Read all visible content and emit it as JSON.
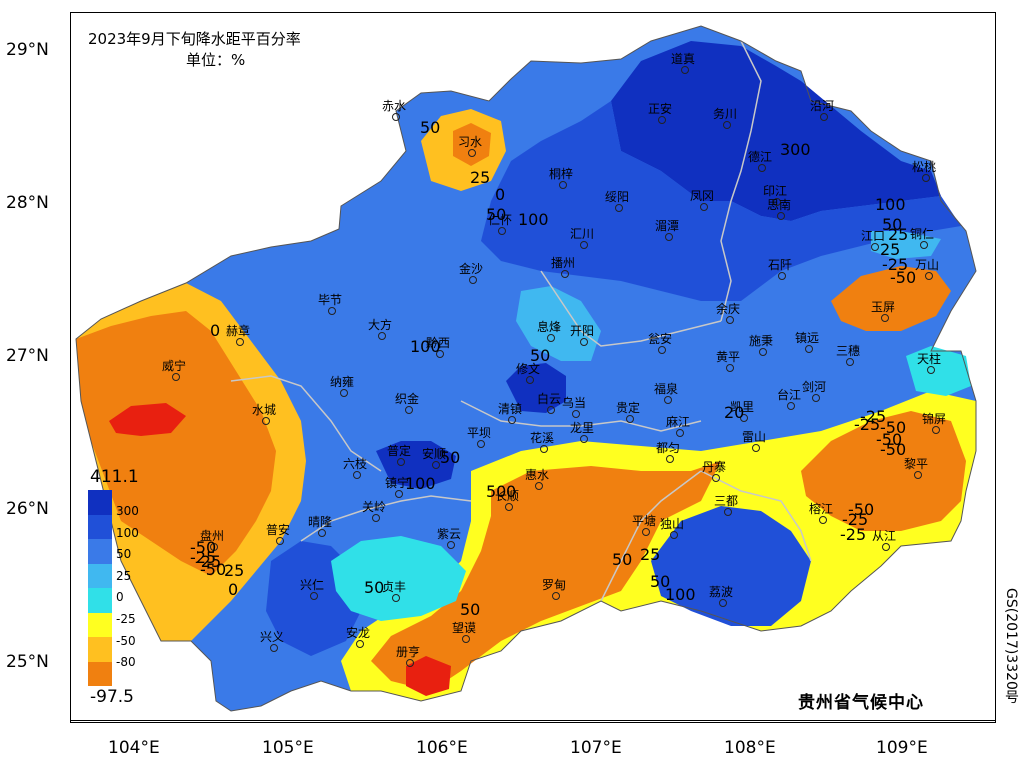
{
  "title": "2023年9月下旬降水距平百分率",
  "unit": "单位：%",
  "credit": "贵州省气候中心",
  "review_code": "GS(2017)3320号",
  "axes": {
    "lat_labels": [
      "29°N",
      "28°N",
      "27°N",
      "26°N",
      "25°N"
    ],
    "lon_labels": [
      "104°E",
      "105°E",
      "106°E",
      "107°E",
      "108°E",
      "109°E"
    ]
  },
  "legend": {
    "max": "411.1",
    "min": "-97.5",
    "ticks": [
      "300",
      "100",
      "50",
      "25",
      "0",
      "-25",
      "-50",
      "-80"
    ],
    "colors": [
      "#1030c0",
      "#2050d8",
      "#3a7ae8",
      "#40b8f0",
      "#30e0e8",
      "#ffff20",
      "#ffc020",
      "#f08010",
      "#e82010"
    ]
  },
  "contour_labels": [
    "50",
    "25",
    "0",
    "50",
    "100",
    "300",
    "100",
    "50",
    "25",
    "-25",
    "-50",
    "0",
    "100",
    "50",
    "-50",
    "-25",
    "50",
    "100",
    "-25",
    "-50",
    "25",
    "50",
    "-50",
    "-25",
    "50",
    "0",
    "50",
    "50",
    "100",
    "25",
    "50",
    "-50",
    "-25",
    "-25",
    "-50",
    "-25",
    "-50",
    "25",
    "0",
    "20"
  ],
  "stations": [
    "赤水",
    "习水",
    "道真",
    "正安",
    "务川",
    "沿河",
    "桐梓",
    "绥阳",
    "德江",
    "松桃",
    "仁怀",
    "凤冈",
    "印江",
    "思南",
    "江口",
    "铜仁",
    "汇川",
    "湄潭",
    "金沙",
    "播州",
    "石阡",
    "万山",
    "毕节",
    "大方",
    "息烽",
    "开阳",
    "余庆",
    "玉屏",
    "黔西",
    "赫章",
    "瓮安",
    "施秉",
    "镇远",
    "三穗",
    "天柱",
    "威宁",
    "修文",
    "黄平",
    "纳雍",
    "织金",
    "白云",
    "乌当",
    "福泉",
    "剑河",
    "台江",
    "水城",
    "清镇",
    "贵定",
    "凯里",
    "锦屏",
    "平坝",
    "龙里",
    "花溪",
    "麻江",
    "都匀",
    "雷山",
    "六枝",
    "普定",
    "安顺",
    "惠水",
    "丹寨",
    "黎平",
    "镇宁",
    "长顺",
    "关岭",
    "三都",
    "榕江",
    "从江",
    "盘州",
    "普安",
    "晴隆",
    "紫云",
    "平塘",
    "独山",
    "兴仁",
    "贞丰",
    "罗甸",
    "荔波",
    "兴义",
    "安龙",
    "望谟",
    "册亨"
  ]
}
